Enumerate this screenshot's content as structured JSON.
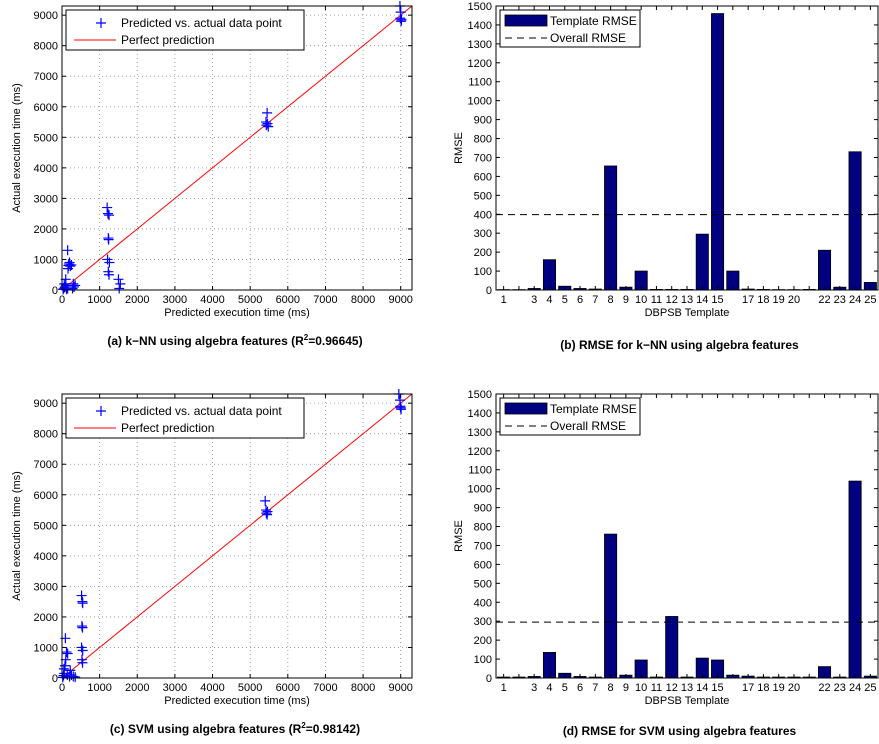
{
  "chart_data": [
    {
      "id": "a",
      "type": "scatter",
      "caption_main": "(a) k−NN using algebra features (R",
      "caption_sup": "2",
      "caption_tail": "=0.96645)",
      "xlabel": "Predicted execution time (ms)",
      "ylabel": "Actual execution time (ms)",
      "xlim": [
        0,
        9300
      ],
      "ylim": [
        0,
        9300
      ],
      "xticks": [
        0,
        1000,
        2000,
        3000,
        4000,
        5000,
        6000,
        7000,
        8000,
        9000
      ],
      "yticks": [
        0,
        1000,
        2000,
        3000,
        4000,
        5000,
        6000,
        7000,
        8000,
        9000
      ],
      "grid": true,
      "legend": [
        "Predicted vs. actual data point",
        "Perfect prediction"
      ],
      "legend_position": "top-left",
      "point_color": "#0000ff",
      "line_color": "#ff0000",
      "points": [
        [
          30,
          20
        ],
        [
          50,
          60
        ],
        [
          80,
          100
        ],
        [
          60,
          200
        ],
        [
          100,
          150
        ],
        [
          120,
          30
        ],
        [
          150,
          50
        ],
        [
          100,
          350
        ],
        [
          160,
          700
        ],
        [
          170,
          800
        ],
        [
          180,
          850
        ],
        [
          200,
          900
        ],
        [
          150,
          1300
        ],
        [
          220,
          780
        ],
        [
          250,
          820
        ],
        [
          300,
          200
        ],
        [
          320,
          100
        ],
        [
          280,
          50
        ],
        [
          350,
          150
        ],
        [
          1200,
          2700
        ],
        [
          1220,
          2500
        ],
        [
          1250,
          2450
        ],
        [
          1230,
          1700
        ],
        [
          1240,
          1650
        ],
        [
          1210,
          1000
        ],
        [
          1260,
          900
        ],
        [
          1230,
          600
        ],
        [
          1250,
          500
        ],
        [
          1500,
          350
        ],
        [
          1550,
          200
        ],
        [
          1520,
          50
        ],
        [
          5450,
          5800
        ],
        [
          5420,
          5500
        ],
        [
          5430,
          5400
        ],
        [
          5480,
          5350
        ],
        [
          5460,
          5450
        ],
        [
          8980,
          9300
        ],
        [
          9000,
          9100
        ],
        [
          8990,
          8900
        ],
        [
          9020,
          8850
        ],
        [
          9010,
          8800
        ]
      ],
      "line": [
        [
          0,
          0
        ],
        [
          9300,
          9300
        ]
      ]
    },
    {
      "id": "b",
      "type": "bar",
      "caption": "(b) RMSE for k−NN using algebra features",
      "xlabel": "DBPSB Template",
      "ylabel": "RMSE",
      "categories": [
        "1",
        "2",
        "3",
        "4",
        "5",
        "6",
        "7",
        "8",
        "9",
        "10",
        "11",
        "12",
        "13",
        "14",
        "15",
        "16",
        "17",
        "18",
        "19",
        "20",
        "21",
        "22",
        "23",
        "24",
        "25"
      ],
      "tick_labels": [
        "1",
        "3",
        "4",
        "5",
        "6",
        "7",
        "8",
        "9",
        "10",
        "11",
        "12",
        "13",
        "14",
        "15",
        "17",
        "18",
        "19",
        "20",
        "22",
        "23",
        "24",
        "25"
      ],
      "values": [
        2,
        2,
        8,
        160,
        20,
        8,
        5,
        655,
        15,
        100,
        3,
        3,
        3,
        295,
        1460,
        100,
        5,
        3,
        2,
        2,
        3,
        210,
        15,
        730,
        40
      ],
      "ylim": [
        0,
        1500
      ],
      "yticks": [
        0,
        100,
        200,
        300,
        400,
        500,
        600,
        700,
        800,
        900,
        1000,
        1100,
        1200,
        1300,
        1400,
        1500
      ],
      "overall_rmse": 398,
      "legend": [
        "Template RMSE",
        "Overall RMSE"
      ],
      "legend_position": "top-left",
      "bar_color": "#000080"
    },
    {
      "id": "c",
      "type": "scatter",
      "caption_main": "(c) SVM using algebra features (R",
      "caption_sup": "2",
      "caption_tail": "=0.98142)",
      "xlabel": "Predicted execution time (ms)",
      "ylabel": "Actual execution time (ms)",
      "xlim": [
        0,
        9300
      ],
      "ylim": [
        0,
        9300
      ],
      "xticks": [
        0,
        1000,
        2000,
        3000,
        4000,
        5000,
        6000,
        7000,
        8000,
        9000
      ],
      "yticks": [
        0,
        1000,
        2000,
        3000,
        4000,
        5000,
        6000,
        7000,
        8000,
        9000
      ],
      "grid": true,
      "legend": [
        "Predicted vs. actual data point",
        "Perfect prediction"
      ],
      "legend_position": "top-left",
      "point_color": "#0000ff",
      "line_color": "#ff0000",
      "points": [
        [
          20,
          20
        ],
        [
          40,
          80
        ],
        [
          60,
          150
        ],
        [
          50,
          300
        ],
        [
          80,
          400
        ],
        [
          100,
          600
        ],
        [
          120,
          850
        ],
        [
          90,
          1300
        ],
        [
          150,
          800
        ],
        [
          140,
          100
        ],
        [
          200,
          50
        ],
        [
          220,
          250
        ],
        [
          250,
          100
        ],
        [
          300,
          50
        ],
        [
          350,
          30
        ],
        [
          520,
          2700
        ],
        [
          540,
          2500
        ],
        [
          550,
          2450
        ],
        [
          530,
          1700
        ],
        [
          545,
          1650
        ],
        [
          520,
          1000
        ],
        [
          550,
          900
        ],
        [
          530,
          600
        ],
        [
          545,
          500
        ],
        [
          5400,
          5800
        ],
        [
          5420,
          5500
        ],
        [
          5430,
          5400
        ],
        [
          5450,
          5350
        ],
        [
          5460,
          5450
        ],
        [
          8950,
          9300
        ],
        [
          8980,
          9100
        ],
        [
          8990,
          8900
        ],
        [
          9000,
          8850
        ],
        [
          9010,
          8800
        ]
      ],
      "line": [
        [
          0,
          0
        ],
        [
          9300,
          9300
        ]
      ]
    },
    {
      "id": "d",
      "type": "bar",
      "caption": "(d) RMSE for SVM using algebra features",
      "xlabel": "DBPSB Template",
      "ylabel": "RMSE",
      "categories": [
        "1",
        "2",
        "3",
        "4",
        "5",
        "6",
        "7",
        "8",
        "9",
        "10",
        "11",
        "12",
        "13",
        "14",
        "15",
        "16",
        "17",
        "18",
        "19",
        "20",
        "21",
        "22",
        "23",
        "24",
        "25"
      ],
      "tick_labels": [
        "1",
        "3",
        "4",
        "5",
        "6",
        "7",
        "8",
        "9",
        "10",
        "11",
        "12",
        "13",
        "14",
        "15",
        "17",
        "18",
        "19",
        "20",
        "22",
        "23",
        "24",
        "25"
      ],
      "values": [
        5,
        5,
        8,
        135,
        25,
        8,
        5,
        760,
        15,
        95,
        5,
        325,
        5,
        105,
        95,
        15,
        10,
        5,
        5,
        5,
        5,
        60,
        5,
        1040,
        10
      ],
      "ylim": [
        0,
        1500
      ],
      "yticks": [
        0,
        100,
        200,
        300,
        400,
        500,
        600,
        700,
        800,
        900,
        1000,
        1100,
        1200,
        1300,
        1400,
        1500
      ],
      "overall_rmse": 295,
      "legend": [
        "Template RMSE",
        "Overall RMSE"
      ],
      "legend_position": "top-left",
      "bar_color": "#000080"
    }
  ]
}
